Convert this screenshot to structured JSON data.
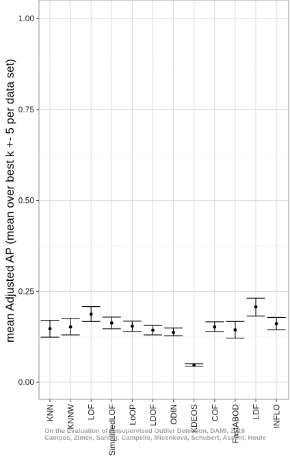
{
  "chart_data": {
    "type": "errorbar",
    "ylabel": "mean Adjusted AP (mean over best k +- 5 per data set)",
    "xlabel": "",
    "ylim": [
      0.0,
      1.0
    ],
    "yticks": [
      "0.00",
      "0.25",
      "0.50",
      "0.75",
      "1.00"
    ],
    "grid": true,
    "categories": [
      "KNN",
      "KNNW",
      "LOF",
      "SimplifiedLOF",
      "LoOP",
      "LDOF",
      "ODIN",
      "KDEOS",
      "COF",
      "FastABOD",
      "LDF",
      "INFLO"
    ],
    "series": [
      {
        "mean": [
          0.147,
          0.152,
          0.187,
          0.163,
          0.154,
          0.143,
          0.137,
          0.047,
          0.152,
          0.144,
          0.207,
          0.161
        ],
        "lower": [
          0.124,
          0.13,
          0.167,
          0.147,
          0.14,
          0.13,
          0.128,
          0.044,
          0.14,
          0.121,
          0.182,
          0.144
        ],
        "upper": [
          0.17,
          0.175,
          0.208,
          0.179,
          0.168,
          0.156,
          0.149,
          0.051,
          0.166,
          0.167,
          0.231,
          0.178
        ]
      }
    ]
  },
  "watermark": {
    "line1": "On the Evaluation of Unsupervised Outlier Detection, DAMI, 2016",
    "line2": "Campos, Zimek, Sander, Campello, Micenková, Schubert, Assent, Houle"
  }
}
